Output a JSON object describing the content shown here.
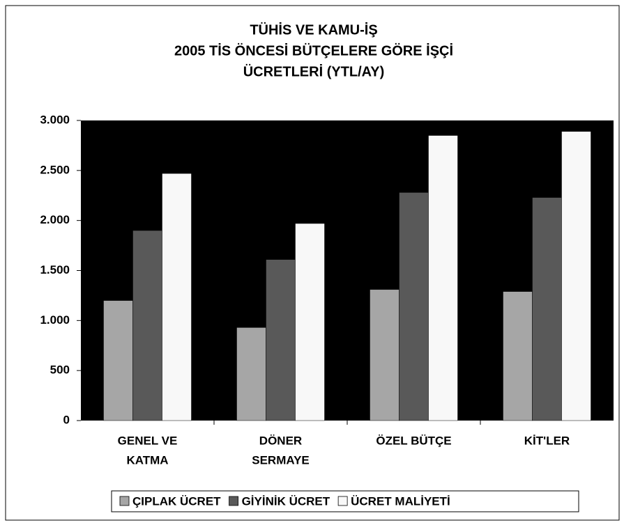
{
  "chart_data": {
    "type": "bar",
    "title": [
      "TÜHİS VE KAMU-İŞ",
      "2005 TİS ÖNCESİ BÜTÇELERE GÖRE İŞÇİ",
      "ÜCRETLERİ (YTL/AY)"
    ],
    "categories": [
      [
        "GENEL VE",
        "KATMA"
      ],
      [
        "DÖNER",
        "SERMAYE"
      ],
      [
        "ÖZEL BÜTÇE"
      ],
      [
        "KİT'LER"
      ]
    ],
    "series": [
      {
        "name": "ÇIPLAK ÜCRET",
        "color": "#a6a6a6",
        "values": [
          1200,
          930,
          1310,
          1290
        ]
      },
      {
        "name": "GİYİNİK ÜCRET",
        "color": "#595959",
        "values": [
          1900,
          1610,
          2280,
          2230
        ]
      },
      {
        "name": "ÜCRET MALİYETİ",
        "color": "#f8f8f8",
        "values": [
          2470,
          1970,
          2850,
          2890
        ]
      }
    ],
    "ylim": [
      0,
      3000
    ],
    "yticks": [
      0,
      500,
      {
        "value": 1000,
        "label": "1.000"
      },
      {
        "value": 1500,
        "label": "1.500"
      },
      {
        "value": 2000,
        "label": "2.000"
      },
      {
        "value": 2500,
        "label": "2.500"
      },
      {
        "value": 3000,
        "label": "3.000"
      }
    ],
    "plot_background": "#000000",
    "legend": "bottom"
  }
}
